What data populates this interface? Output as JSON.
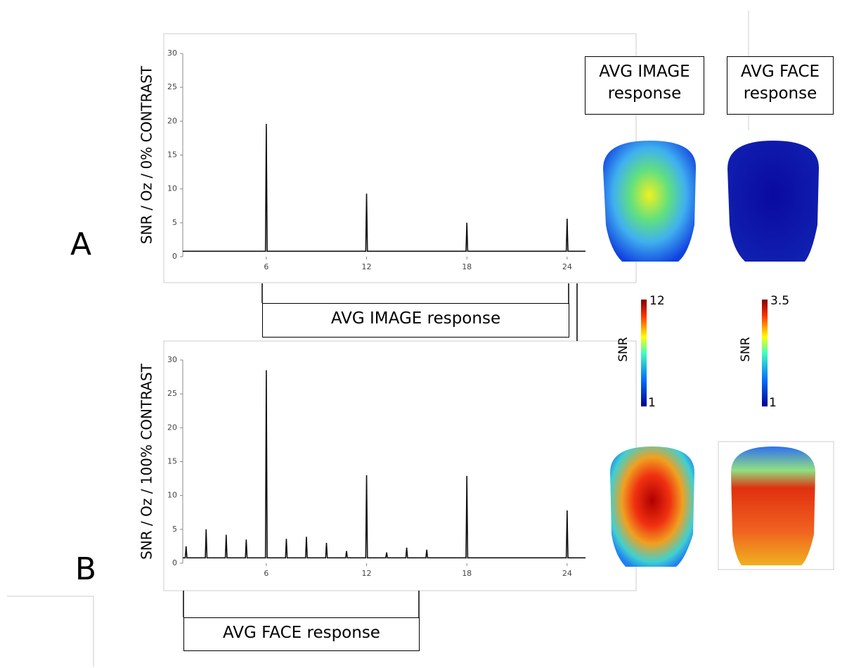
{
  "chart_data": [
    {
      "type": "line",
      "ylabel": "SNR / Oz / 0% CONTRAST",
      "color": "#111111",
      "x": [
        1,
        5.95,
        6,
        6.05,
        11.95,
        12,
        12.05,
        17.95,
        18,
        18.05,
        23.95,
        24,
        24.05,
        25.1
      ],
      "values": [
        0.8,
        0.8,
        19.6,
        0.8,
        0.8,
        9.3,
        0.8,
        0.8,
        5,
        0.8,
        0.8,
        5.6,
        0.8,
        0.8
      ],
      "xlim": [
        1,
        25.1
      ],
      "ylim": [
        0,
        30
      ],
      "xticks": [
        6,
        12,
        18,
        24
      ],
      "yticks": [
        0,
        5,
        10,
        15,
        20,
        25,
        30
      ]
    },
    {
      "type": "line",
      "ylabel": "SNR / Oz / 100% CONTRAST",
      "color": "#111111",
      "x": [
        1,
        1.15,
        1.2,
        1.25,
        2.35,
        2.4,
        2.45,
        3.55,
        3.6,
        3.65,
        4.75,
        4.8,
        4.85,
        5.95,
        6,
        6.05,
        7.15,
        7.2,
        7.25,
        8.35,
        8.4,
        8.45,
        9.55,
        9.6,
        9.65,
        10.75,
        10.8,
        10.85,
        11.95,
        12,
        12.05,
        13.15,
        13.2,
        13.25,
        14.35,
        14.4,
        14.45,
        15.55,
        15.6,
        15.65,
        17.95,
        18,
        18.05,
        23.95,
        24,
        24.05,
        25.1
      ],
      "values": [
        0.8,
        0.8,
        2.5,
        0.8,
        0.8,
        5,
        0.8,
        0.8,
        4.2,
        0.8,
        0.8,
        3.5,
        0.8,
        0.8,
        28.5,
        0.8,
        0.8,
        3.6,
        0.8,
        0.8,
        3.9,
        0.8,
        0.8,
        3,
        0.8,
        0.8,
        1.8,
        0.8,
        0.8,
        13,
        0.8,
        0.8,
        1.6,
        0.8,
        0.8,
        2.3,
        0.8,
        0.8,
        2,
        0.8,
        0.8,
        12.9,
        0.8,
        0.8,
        7.8,
        0.8,
        0.8
      ],
      "xlim": [
        1,
        25.1
      ],
      "ylim": [
        0,
        30
      ],
      "xticks": [
        6,
        12,
        18,
        24
      ],
      "yticks": [
        0,
        5,
        10,
        15,
        20,
        25,
        30
      ]
    }
  ],
  "panel_labels": [
    "A",
    "B"
  ],
  "brackets": [
    "AVG IMAGE response",
    "AVG FACE response"
  ],
  "topomap_titles": [
    "AVG IMAGE response",
    "AVG FACE response"
  ],
  "colorbars": [
    {
      "label": "SNR",
      "max": 12,
      "min": 1
    },
    {
      "label": "SNR",
      "max": 3.5,
      "min": 1
    }
  ]
}
